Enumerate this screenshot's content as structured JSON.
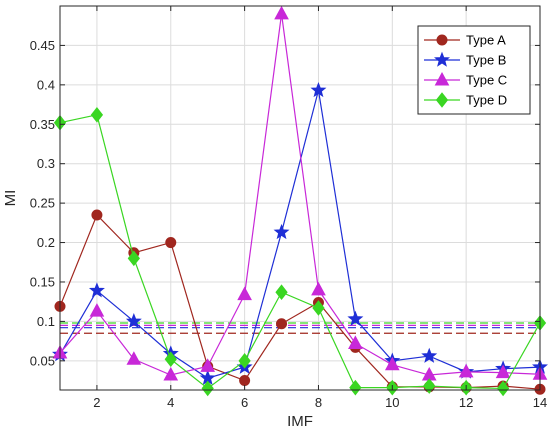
{
  "chart_data": {
    "type": "line",
    "title": "",
    "xlabel": "IMF",
    "ylabel": "MI",
    "xlim": [
      1,
      14
    ],
    "ylim": [
      0.013,
      0.5
    ],
    "xticks": [
      2,
      4,
      6,
      8,
      10,
      12,
      14
    ],
    "yticks": [
      0.05,
      0.1,
      0.15,
      0.2,
      0.25,
      0.3,
      0.35,
      0.4,
      0.45
    ],
    "ytick_labels": [
      "0.05",
      "0.1",
      "0.15",
      "0.2",
      "0.25",
      "0.3",
      "0.35",
      "0.4",
      "0.45"
    ],
    "grid": true,
    "legend_position": "top-right",
    "x": [
      1,
      2,
      3,
      4,
      5,
      6,
      7,
      8,
      9,
      10,
      11,
      12,
      13,
      14
    ],
    "series": [
      {
        "name": "Type A",
        "color": "#a0271f",
        "marker": "circle",
        "values": [
          0.119,
          0.235,
          0.187,
          0.2,
          0.043,
          0.025,
          0.097,
          0.124,
          0.067,
          0.017,
          0.017,
          0.016,
          0.018,
          0.014
        ],
        "threshold": 0.085
      },
      {
        "name": "Type B",
        "color": "#1f2fd6",
        "marker": "star",
        "values": [
          0.058,
          0.139,
          0.1,
          0.059,
          0.028,
          0.042,
          0.213,
          0.393,
          0.103,
          0.05,
          0.056,
          0.036,
          0.04,
          0.042
        ],
        "threshold": 0.092
      },
      {
        "name": "Type C",
        "color": "#c828d8",
        "marker": "triangle",
        "values": [
          0.06,
          0.113,
          0.052,
          0.032,
          0.043,
          0.134,
          0.49,
          0.14,
          0.072,
          0.045,
          0.032,
          0.036,
          0.035,
          0.033
        ],
        "threshold": 0.095
      },
      {
        "name": "Type D",
        "color": "#3ad622",
        "marker": "diamond",
        "values": [
          0.352,
          0.362,
          0.18,
          0.052,
          0.015,
          0.05,
          0.137,
          0.117,
          0.016,
          0.016,
          0.018,
          0.016,
          0.015,
          0.098
        ],
        "threshold": 0.098
      }
    ]
  }
}
